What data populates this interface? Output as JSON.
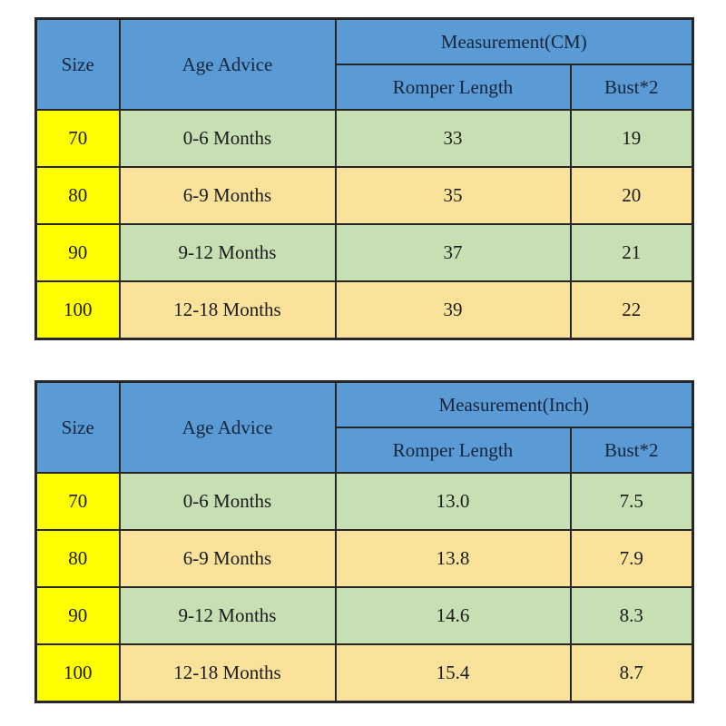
{
  "colors": {
    "header_bg": "#5B9BD5",
    "header_text": "#16253C",
    "size_col_bg": "#FFFF00",
    "row_green_bg": "#C6E0B4",
    "row_tan_bg": "#FBE29B",
    "border": "#262626",
    "body_text": "#1B1B1B",
    "page_bg": "#FFFFFF"
  },
  "tables": [
    {
      "headers": {
        "size": "Size",
        "age": "Age Advice",
        "measurement": "Measurement(CM)",
        "length": "Romper Length",
        "bust": "Bust*2"
      },
      "rows": [
        {
          "size": "70",
          "age": "0-6 Months",
          "length": "33",
          "bust": "19"
        },
        {
          "size": "80",
          "age": "6-9 Months",
          "length": "35",
          "bust": "20"
        },
        {
          "size": "90",
          "age": "9-12 Months",
          "length": "37",
          "bust": "21"
        },
        {
          "size": "100",
          "age": "12-18 Months",
          "length": "39",
          "bust": "22"
        }
      ]
    },
    {
      "headers": {
        "size": "Size",
        "age": "Age Advice",
        "measurement": "Measurement(Inch)",
        "length": "Romper Length",
        "bust": "Bust*2"
      },
      "rows": [
        {
          "size": "70",
          "age": "0-6 Months",
          "length": "13.0",
          "bust": "7.5"
        },
        {
          "size": "80",
          "age": "6-9 Months",
          "length": "13.8",
          "bust": "7.9"
        },
        {
          "size": "90",
          "age": "9-12 Months",
          "length": "14.6",
          "bust": "8.3"
        },
        {
          "size": "100",
          "age": "12-18 Months",
          "length": "15.4",
          "bust": "8.7"
        }
      ]
    }
  ],
  "chart_data": [
    {
      "type": "table",
      "title": "Measurement(CM)",
      "columns": [
        "Size",
        "Age Advice",
        "Romper Length",
        "Bust*2"
      ],
      "rows": [
        [
          "70",
          "0-6 Months",
          33,
          19
        ],
        [
          "80",
          "6-9 Months",
          35,
          20
        ],
        [
          "90",
          "9-12 Months",
          37,
          21
        ],
        [
          "100",
          "12-18 Months",
          39,
          22
        ]
      ]
    },
    {
      "type": "table",
      "title": "Measurement(Inch)",
      "columns": [
        "Size",
        "Age Advice",
        "Romper Length",
        "Bust*2"
      ],
      "rows": [
        [
          "70",
          "0-6 Months",
          13.0,
          7.5
        ],
        [
          "80",
          "6-9 Months",
          13.8,
          7.9
        ],
        [
          "90",
          "9-12 Months",
          14.6,
          8.3
        ],
        [
          "100",
          "12-18 Months",
          15.4,
          8.7
        ]
      ]
    }
  ]
}
